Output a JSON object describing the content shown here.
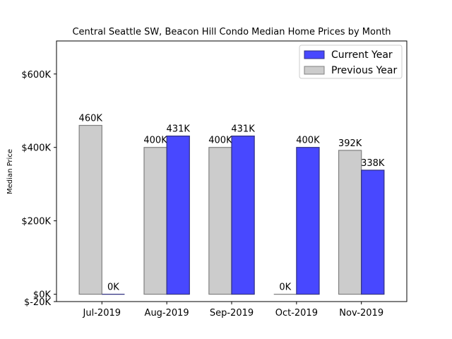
{
  "chart_data": {
    "type": "bar",
    "title": "Central Seattle SW, Beacon Hill Condo Median Home Prices by Month",
    "xlabel": "",
    "ylabel": "Median Price",
    "categories": [
      "Jul-2019",
      "Aug-2019",
      "Sep-2019",
      "Oct-2019",
      "Nov-2019"
    ],
    "series": [
      {
        "name": "Previous Year",
        "color": "#cccccc",
        "edge": "#808080",
        "values": [
          460000,
          400000,
          400000,
          0,
          392000
        ],
        "labels": [
          "460K",
          "400K",
          "400K",
          "0K",
          "392K"
        ]
      },
      {
        "name": "Current Year",
        "color": "#4848ff",
        "edge": "#303080",
        "values": [
          0,
          431000,
          431000,
          400000,
          338000
        ],
        "labels": [
          "0K",
          "431K",
          "431K",
          "400K",
          "338K"
        ]
      }
    ],
    "legend_order": [
      "Current Year",
      "Previous Year"
    ],
    "ylim": [
      -20000,
      690000
    ],
    "yticks": [
      -20000,
      0,
      200000,
      400000,
      600000
    ],
    "ytick_labels": [
      "$-20K",
      "$0K",
      "$200K",
      "$400K",
      "$600K"
    ],
    "grid": false,
    "legend_position": "top-right"
  }
}
